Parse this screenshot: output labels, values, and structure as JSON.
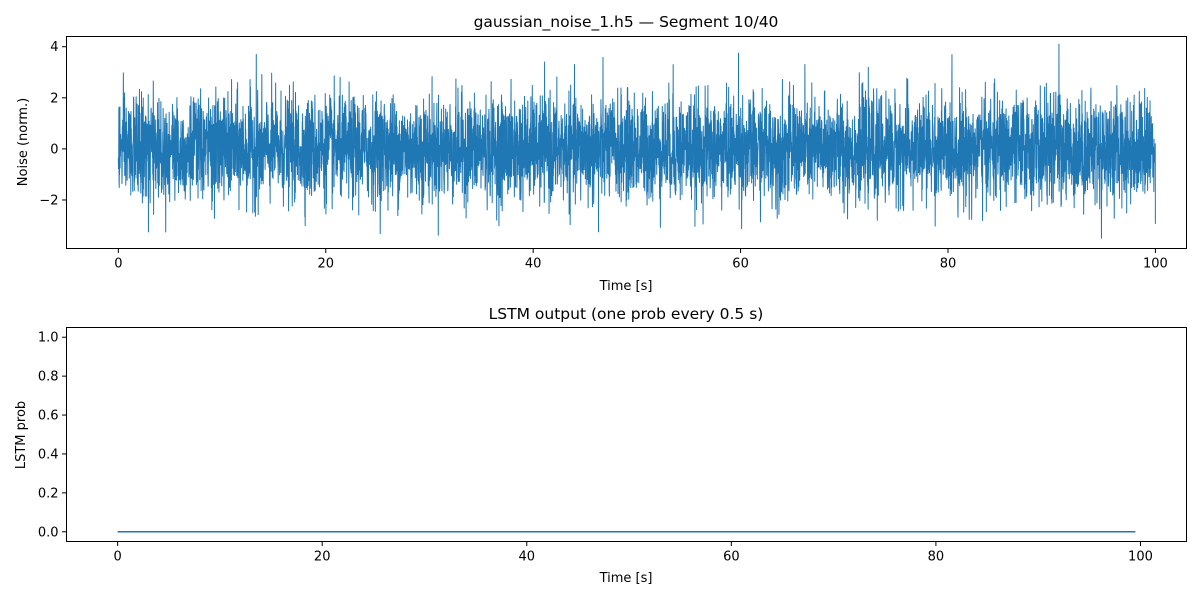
{
  "colors": {
    "series": "#1f77b4",
    "background": "#ffffff",
    "axes": "#000000"
  },
  "chart_data": [
    {
      "type": "line",
      "title": "gaussian_noise_1.h5 — Segment 10/40",
      "xlabel": "Time [s]",
      "ylabel": "Noise (norm.)",
      "xlim": [
        -5,
        103
      ],
      "ylim": [
        -3.9,
        4.4
      ],
      "xticks": [
        0,
        20,
        40,
        60,
        80,
        100
      ],
      "yticks": [
        -2,
        0,
        2,
        4
      ],
      "tick_labels_x": [
        "0",
        "20",
        "40",
        "60",
        "80",
        "100"
      ],
      "tick_labels_y": [
        "−2",
        "0",
        "2",
        "4"
      ],
      "grid": false,
      "signal": {
        "description_kind": "gaussian noise",
        "x_start": 0,
        "x_end": 100,
        "mean": 0,
        "std": 1.0,
        "min": -3.5,
        "max": 4.1,
        "notable_peaks": [
          {
            "x": 13.3,
            "y": 3.7
          },
          {
            "x": 41.1,
            "y": 3.4
          },
          {
            "x": 53.5,
            "y": 3.3
          },
          {
            "x": 59.8,
            "y": 3.75
          },
          {
            "x": 90.7,
            "y": 4.1
          },
          {
            "x": 94.8,
            "y": -3.5
          },
          {
            "x": 2.9,
            "y": -3.25
          },
          {
            "x": 46.3,
            "y": -3.25
          }
        ]
      }
    },
    {
      "type": "line",
      "title": "LSTM output (one prob every 0.5 s)",
      "xlabel": "Time [s]",
      "ylabel": "LSTM prob",
      "xlim": [
        -5,
        104.5
      ],
      "ylim": [
        -0.05,
        1.05
      ],
      "xticks": [
        0,
        20,
        40,
        60,
        80,
        100
      ],
      "yticks": [
        0.0,
        0.2,
        0.4,
        0.6,
        0.8,
        1.0
      ],
      "tick_labels_x": [
        "0",
        "20",
        "40",
        "60",
        "80",
        "100"
      ],
      "tick_labels_y": [
        "0.0",
        "0.2",
        "0.4",
        "0.6",
        "0.8",
        "1.0"
      ],
      "grid": false,
      "x": [
        0,
        99.5
      ],
      "y": [
        0.0,
        0.0
      ],
      "step": 0.5
    }
  ]
}
